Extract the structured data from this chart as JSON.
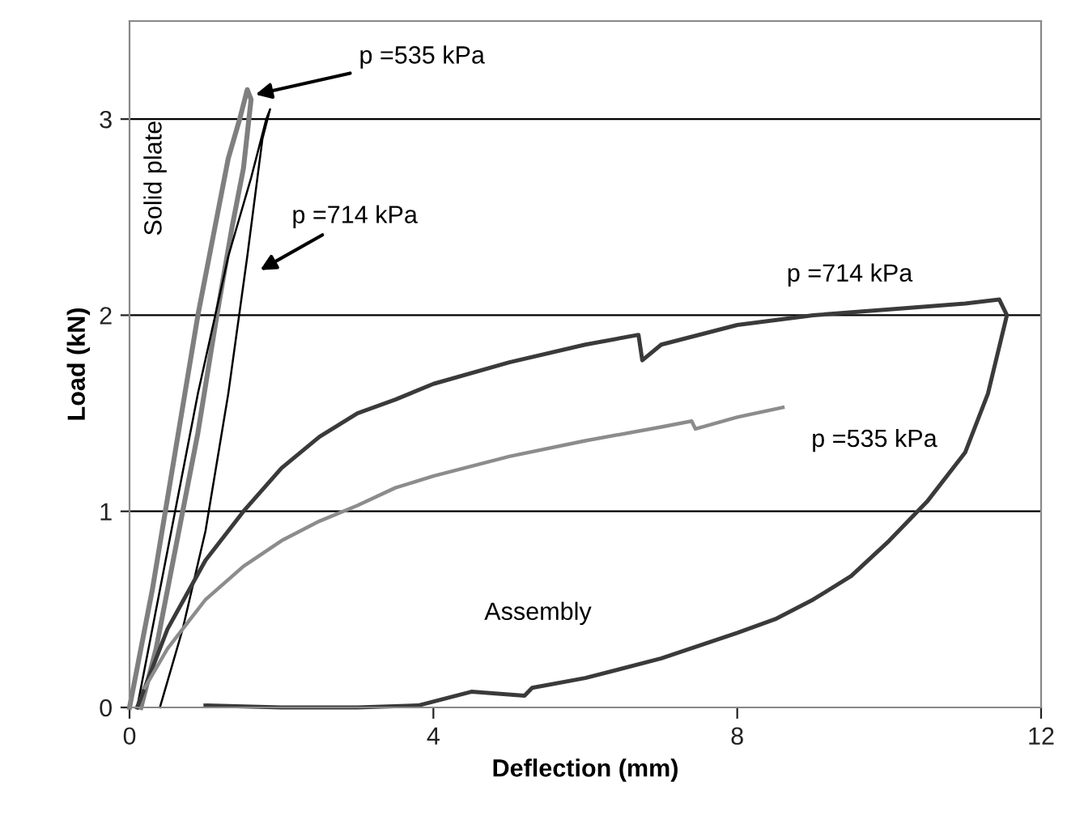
{
  "chart_data": {
    "type": "line",
    "xlabel": "Deflection (mm)",
    "ylabel": "Load (kN)",
    "xlim": [
      0,
      12
    ],
    "xticks": [
      0,
      4,
      8,
      12
    ],
    "ylim": [
      0,
      3.5
    ],
    "yticks": [
      0,
      1,
      2,
      3
    ],
    "grid": "y",
    "legend": false,
    "marker": "none",
    "line_style": "solid",
    "series": [
      {
        "color": "#7f7f7f",
        "x": [
          0,
          0.3,
          0.6,
          0.9,
          1.1,
          1.3,
          1.45,
          1.55,
          1.6,
          1.5,
          1.35,
          1.15,
          0.9,
          0.6,
          0.35,
          0.15
        ],
        "values": [
          0,
          0.6,
          1.3,
          2.0,
          2.4,
          2.8,
          3.0,
          3.15,
          3.1,
          2.75,
          2.45,
          2.0,
          1.4,
          0.8,
          0.3,
          0
        ]
      },
      {
        "color": "#000000",
        "x": [
          0.1,
          0.5,
          0.9,
          1.3,
          1.6,
          1.8,
          1.85,
          1.75,
          1.55,
          1.3,
          1.0,
          0.7,
          0.4
        ],
        "values": [
          0,
          0.8,
          1.6,
          2.3,
          2.7,
          3.0,
          3.05,
          2.9,
          2.3,
          1.6,
          0.9,
          0.4,
          0
        ]
      },
      {
        "color": "#3a3a3a",
        "x": [
          0.1,
          0.5,
          1,
          1.5,
          2,
          2.5,
          3,
          3.5,
          4,
          5,
          6,
          6.7,
          6.75,
          7,
          8,
          9,
          10,
          11,
          11.45,
          11.55,
          11.3,
          11,
          10.5,
          10,
          9.5,
          9,
          8.5,
          8,
          7,
          6,
          5.3,
          5.2,
          4.5,
          3.8,
          3,
          2,
          1
        ],
        "values": [
          0,
          0.4,
          0.75,
          1.0,
          1.22,
          1.38,
          1.5,
          1.57,
          1.65,
          1.76,
          1.85,
          1.9,
          1.77,
          1.85,
          1.95,
          2.0,
          2.03,
          2.06,
          2.08,
          2.0,
          1.6,
          1.3,
          1.05,
          0.85,
          0.67,
          0.55,
          0.45,
          0.38,
          0.25,
          0.15,
          0.1,
          0.06,
          0.08,
          0.01,
          0,
          0,
          0.01
        ]
      },
      {
        "color": "#8c8c8c",
        "x": [
          0.2,
          0.5,
          1,
          1.5,
          2,
          2.5,
          3,
          3.5,
          4,
          5,
          6,
          7,
          7.4,
          7.45,
          8,
          8.6
        ],
        "values": [
          0.1,
          0.3,
          0.55,
          0.72,
          0.85,
          0.95,
          1.03,
          1.12,
          1.18,
          1.28,
          1.36,
          1.43,
          1.46,
          1.42,
          1.48,
          1.53
        ]
      }
    ],
    "annotations": [
      {
        "text": "p =535 kPa",
        "x": 1.6,
        "y": 3.12
      },
      "p =714 kPa",
      "Solid plate",
      "p =714 kPa",
      "p =535 kPa",
      "Assembly"
    ]
  }
}
